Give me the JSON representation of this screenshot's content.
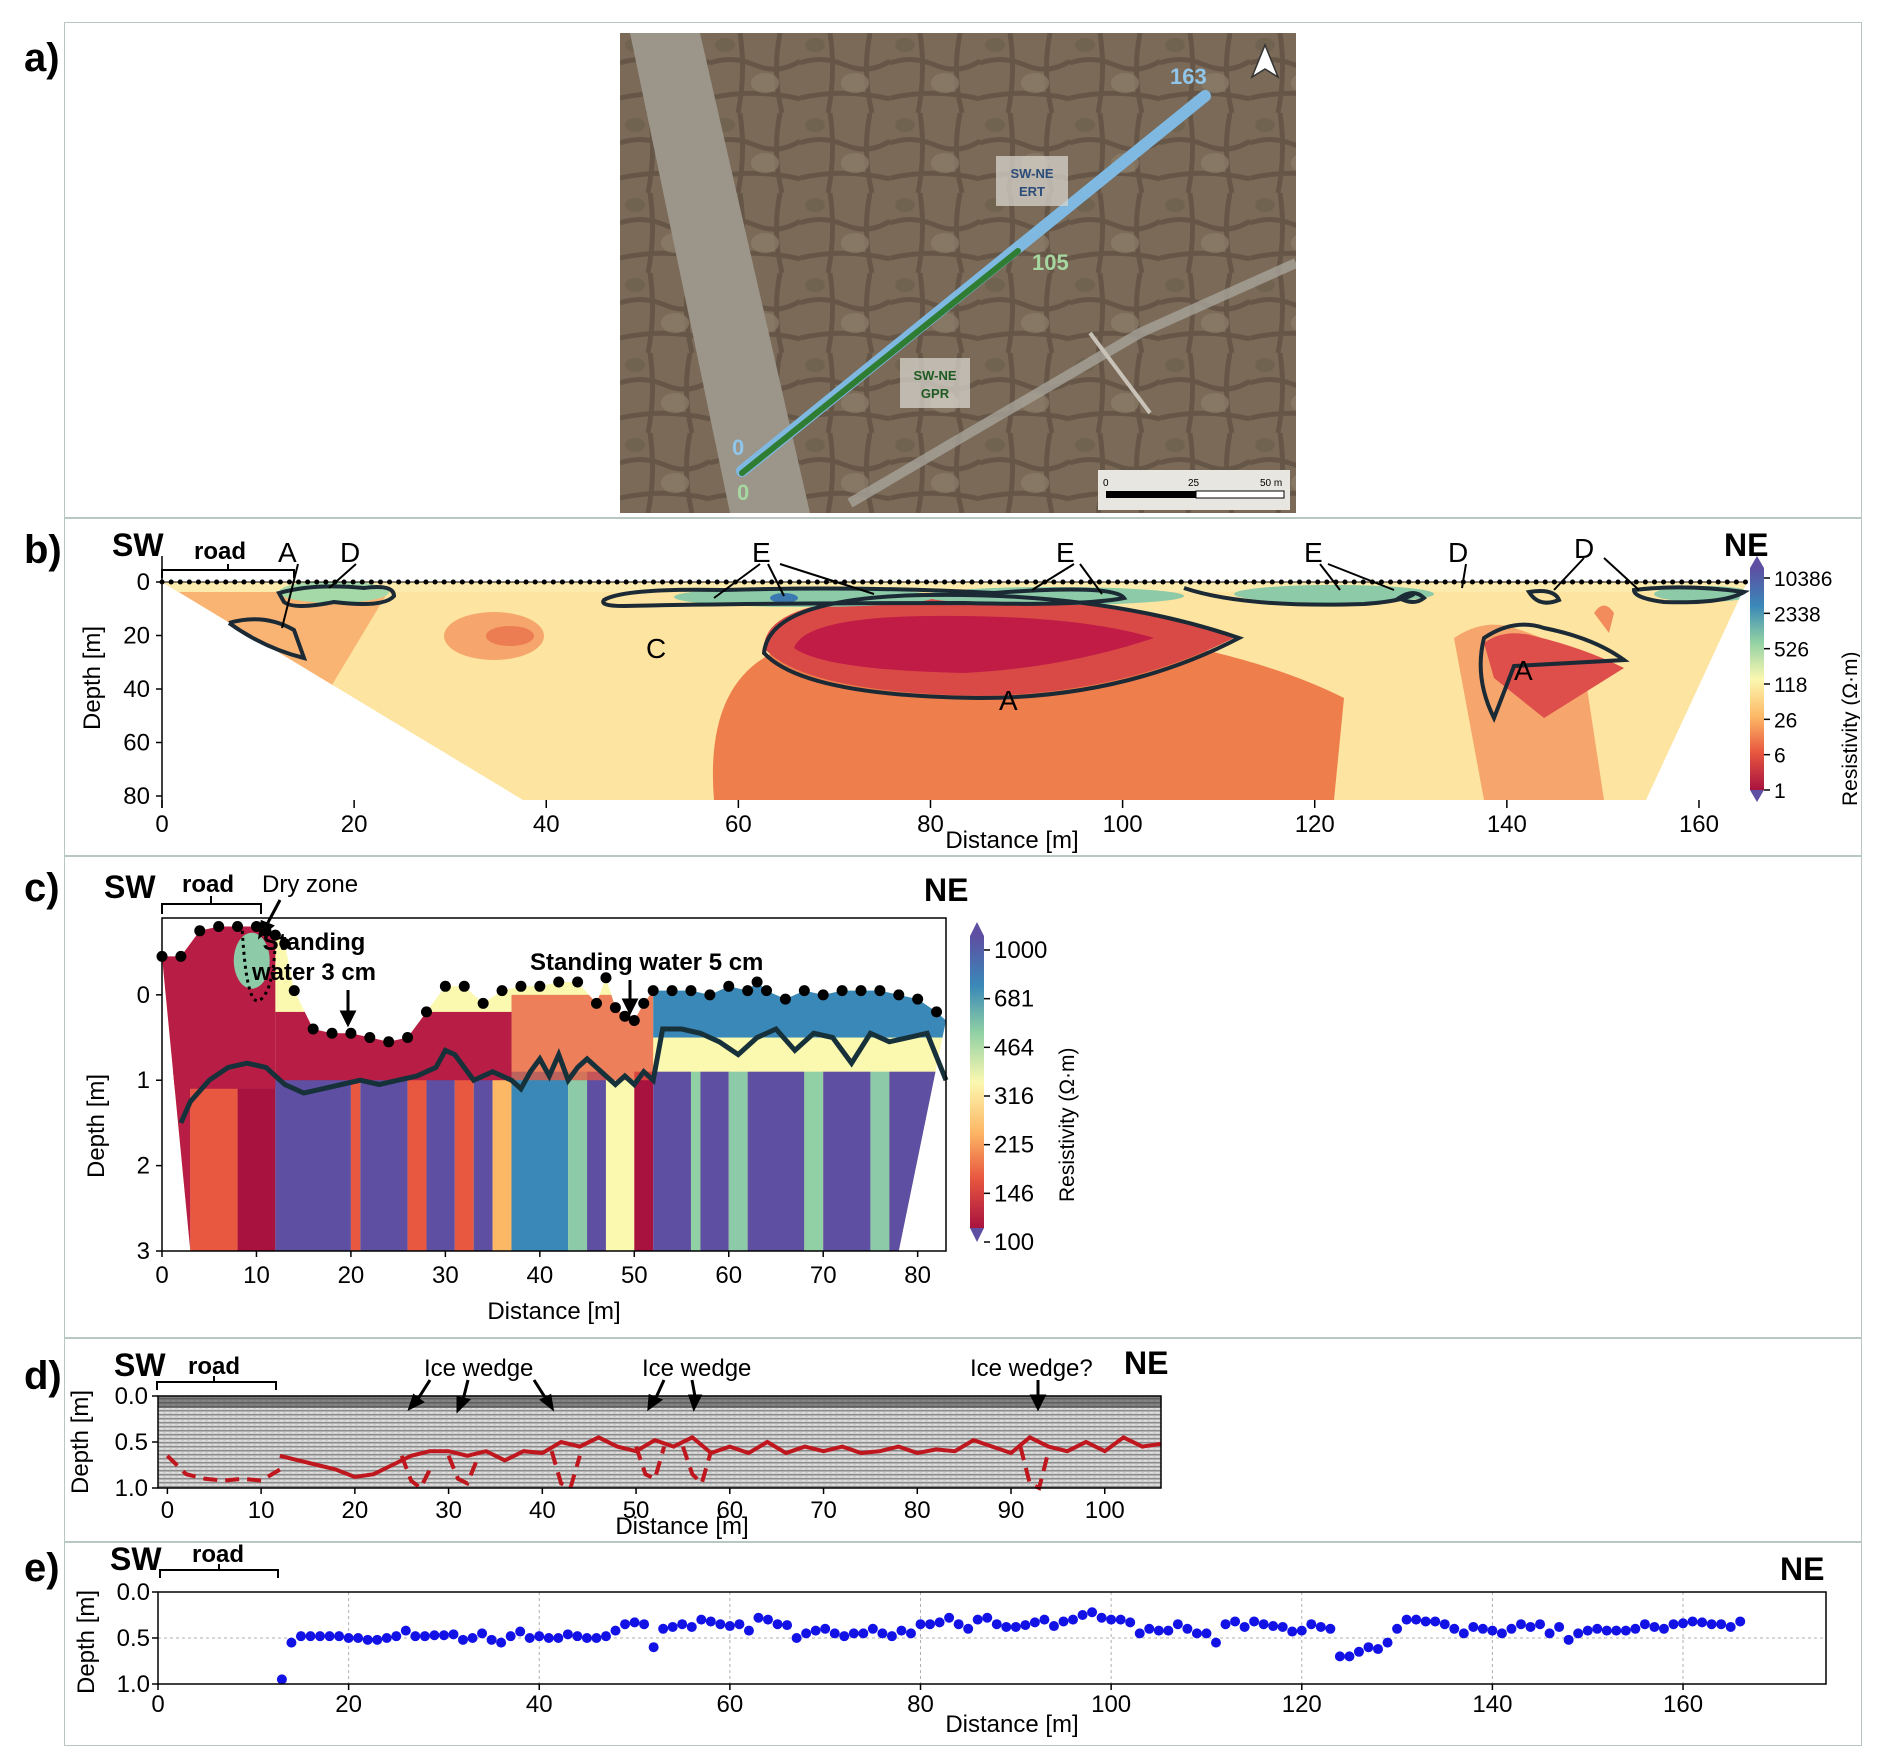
{
  "panel_labels": [
    "a)",
    "b)",
    "c)",
    "d)",
    "e)"
  ],
  "map": {
    "ert_label": "SW-NE\nERT",
    "gpr_label": "SW-NE\nGPR",
    "ert_end": "163",
    "gpr_end": "105",
    "ert_start": "0",
    "gpr_start": "0",
    "scale_ticks": [
      "0",
      "25",
      "50 m"
    ],
    "colors": {
      "ert": "#7fb8e0",
      "gpr": "#2e7d32",
      "ert_text": "#8fc6ea",
      "gpr_text": "#a7d7a0"
    },
    "north_arrow_icon": "north-arrow-icon"
  },
  "chart_data": [
    {
      "id": "b",
      "type": "heatmap",
      "xlabel": "Distance [m]",
      "ylabel": "Depth [m]",
      "xlim": [
        0,
        165
      ],
      "ylim": [
        82,
        -5
      ],
      "xticks": [
        "0",
        "20",
        "40",
        "60",
        "80",
        "100",
        "120",
        "140",
        "160"
      ],
      "yticks": [
        "0",
        "20",
        "40",
        "60",
        "80"
      ],
      "colorbar": {
        "label": "Resistivity (Ω·m)",
        "ticks": [
          "10386",
          "2338",
          "526",
          "118",
          "26",
          "6",
          "1"
        ]
      },
      "annotations": {
        "sw": "SW",
        "ne": "NE",
        "road": "road",
        "zones": [
          "A",
          "D",
          "E",
          "E",
          "E",
          "D",
          "D",
          "C",
          "A",
          "A"
        ]
      }
    },
    {
      "id": "c",
      "type": "heatmap",
      "xlabel": "Distance [m]",
      "ylabel": "Depth [m]",
      "xlim": [
        0,
        83
      ],
      "ylim": [
        3,
        -0.9
      ],
      "xticks": [
        "0",
        "10",
        "20",
        "30",
        "40",
        "50",
        "60",
        "70",
        "80"
      ],
      "yticks": [
        "0",
        "1",
        "2",
        "3"
      ],
      "colorbar": {
        "label": "Resistivity (Ω·m)",
        "ticks": [
          "1000",
          "681",
          "464",
          "316",
          "215",
          "146",
          "100"
        ]
      },
      "annotations": {
        "sw": "SW",
        "ne": "NE",
        "road": "road",
        "dry_zone": "Dry zone",
        "water1": "Standing\nwater 3 cm",
        "water2": "Standing water 5 cm"
      },
      "boundary": {
        "x": [
          2,
          3,
          5,
          7,
          9,
          11,
          13,
          15,
          17,
          19,
          21,
          23,
          25,
          27,
          29,
          30,
          31,
          33,
          35,
          37,
          38,
          39,
          40,
          41,
          42,
          43,
          44,
          45,
          46,
          47,
          48,
          49,
          50,
          51,
          52,
          53,
          55,
          57,
          59,
          61,
          63,
          65,
          67,
          69,
          71,
          73,
          75,
          77,
          79,
          81,
          83
        ],
        "y": [
          1.5,
          1.25,
          1.0,
          0.85,
          0.8,
          0.85,
          1.05,
          1.15,
          1.1,
          1.05,
          1.0,
          1.05,
          1.0,
          0.95,
          0.85,
          0.65,
          0.7,
          1.0,
          0.9,
          1.0,
          1.1,
          0.9,
          0.75,
          0.95,
          0.7,
          1.0,
          0.85,
          0.75,
          0.85,
          0.95,
          1.05,
          0.95,
          1.05,
          0.9,
          1.0,
          0.4,
          0.4,
          0.45,
          0.55,
          0.7,
          0.5,
          0.4,
          0.65,
          0.45,
          0.5,
          0.8,
          0.45,
          0.55,
          0.5,
          0.45,
          1.0
        ]
      },
      "surface": {
        "x": [
          0,
          2,
          4,
          6,
          8,
          10,
          11,
          12,
          13,
          14,
          16,
          18,
          20,
          22,
          24,
          26,
          28,
          30,
          32,
          34,
          36,
          38,
          40,
          42,
          44,
          46,
          47,
          48,
          49,
          50,
          51,
          52,
          54,
          56,
          58,
          60,
          62,
          63,
          64,
          66,
          68,
          70,
          72,
          74,
          76,
          78,
          80,
          82
        ],
        "y": [
          -0.45,
          -0.45,
          -0.75,
          -0.8,
          -0.8,
          -0.8,
          -0.75,
          -0.7,
          -0.6,
          -0.05,
          0.4,
          0.45,
          0.45,
          0.5,
          0.55,
          0.5,
          0.2,
          -0.1,
          -0.1,
          0.1,
          -0.05,
          -0.1,
          -0.1,
          -0.15,
          -0.15,
          0.1,
          -0.2,
          0.15,
          0.25,
          0.3,
          0.1,
          -0.05,
          -0.05,
          -0.05,
          0.0,
          -0.1,
          -0.05,
          -0.15,
          -0.05,
          0.05,
          -0.05,
          0.0,
          -0.05,
          -0.05,
          -0.05,
          0.0,
          0.05,
          0.2
        ]
      }
    },
    {
      "id": "d",
      "type": "line",
      "xlabel": "Distance [m]",
      "ylabel": "Depth [m]",
      "xlim": [
        -1,
        106
      ],
      "ylim": [
        1.0,
        0.0
      ],
      "xticks": [
        "0",
        "10",
        "20",
        "30",
        "40",
        "50",
        "60",
        "70",
        "80",
        "90",
        "100"
      ],
      "yticks": [
        "0.0",
        "0.5",
        "1.0"
      ],
      "annotations": {
        "sw": "SW",
        "ne": "NE",
        "road": "road",
        "ice1": "Ice wedge",
        "ice2": "Ice wedge",
        "ice3": "Ice wedge?"
      },
      "series": [
        {
          "x": [
            12,
            14,
            16,
            18,
            20,
            22,
            24,
            26,
            28,
            30,
            32,
            34,
            36,
            38,
            40,
            42,
            44,
            46,
            48,
            50,
            52,
            54,
            56,
            58,
            60,
            62,
            64,
            66,
            68,
            70,
            72,
            74,
            76,
            78,
            80,
            82,
            84,
            86,
            88,
            90,
            92,
            94,
            96,
            98,
            100,
            102,
            104,
            106
          ],
          "y": [
            0.65,
            0.7,
            0.75,
            0.8,
            0.88,
            0.85,
            0.75,
            0.65,
            0.6,
            0.6,
            0.65,
            0.6,
            0.7,
            0.6,
            0.62,
            0.5,
            0.55,
            0.45,
            0.55,
            0.6,
            0.48,
            0.55,
            0.45,
            0.62,
            0.55,
            0.62,
            0.5,
            0.62,
            0.55,
            0.6,
            0.55,
            0.62,
            0.6,
            0.55,
            0.62,
            0.58,
            0.6,
            0.48,
            0.55,
            0.62,
            0.45,
            0.55,
            0.6,
            0.5,
            0.6,
            0.45,
            0.55,
            0.52
          ]
        },
        {
          "x": [
            0,
            2,
            4,
            6,
            8,
            10,
            12
          ],
          "y": [
            0.65,
            0.85,
            0.9,
            0.92,
            0.9,
            0.92,
            0.8
          ]
        },
        {
          "x": [
            25,
            26,
            27,
            28
          ],
          "y": [
            0.65,
            0.92,
            1.0,
            0.8
          ]
        },
        {
          "x": [
            30,
            31,
            32,
            33
          ],
          "y": [
            0.65,
            0.9,
            0.95,
            0.7
          ]
        },
        {
          "x": [
            41,
            42,
            43,
            44
          ],
          "y": [
            0.6,
            0.95,
            1.0,
            0.65
          ]
        },
        {
          "x": [
            50,
            51,
            52,
            53
          ],
          "y": [
            0.55,
            0.85,
            0.9,
            0.55
          ]
        },
        {
          "x": [
            55,
            56,
            57,
            58
          ],
          "y": [
            0.55,
            0.85,
            0.95,
            0.6
          ]
        },
        {
          "x": [
            91,
            92,
            93,
            94
          ],
          "y": [
            0.55,
            0.95,
            1.0,
            0.6
          ]
        }
      ]
    },
    {
      "id": "e",
      "type": "scatter",
      "xlabel": "Distance [m]",
      "ylabel": "Depth [m]",
      "xlim": [
        0,
        175
      ],
      "ylim": [
        1.0,
        0.0
      ],
      "xticks": [
        "0",
        "20",
        "40",
        "60",
        "80",
        "100",
        "120",
        "140",
        "160"
      ],
      "yticks": [
        "0.0",
        "0.5",
        "1.0"
      ],
      "annotations": {
        "sw": "SW",
        "ne": "NE",
        "road": "road"
      },
      "points": {
        "x": [
          13,
          14,
          15,
          16,
          17,
          18,
          19,
          20,
          21,
          22,
          23,
          24,
          25,
          26,
          27,
          28,
          29,
          30,
          31,
          32,
          33,
          34,
          35,
          36,
          37,
          38,
          39,
          40,
          41,
          42,
          43,
          44,
          45,
          46,
          47,
          48,
          49,
          50,
          51,
          52,
          53,
          54,
          55,
          56,
          57,
          58,
          59,
          60,
          61,
          62,
          63,
          64,
          65,
          66,
          67,
          68,
          69,
          70,
          71,
          72,
          73,
          74,
          75,
          76,
          77,
          78,
          79,
          80,
          81,
          82,
          83,
          84,
          85,
          86,
          87,
          88,
          89,
          90,
          91,
          92,
          93,
          94,
          95,
          96,
          97,
          98,
          99,
          100,
          101,
          102,
          103,
          104,
          105,
          106,
          107,
          108,
          109,
          110,
          111,
          112,
          113,
          114,
          115,
          116,
          117,
          118,
          119,
          120,
          121,
          122,
          123,
          124,
          125,
          126,
          127,
          128,
          129,
          130,
          131,
          132,
          133,
          134,
          135,
          136,
          137,
          138,
          139,
          140,
          141,
          142,
          143,
          144,
          145,
          146,
          147,
          148,
          149,
          150,
          151,
          152,
          153,
          154,
          155,
          156,
          157,
          158,
          159,
          160,
          161,
          162,
          163,
          164,
          165,
          166
        ],
        "y": [
          0.95,
          0.55,
          0.48,
          0.48,
          0.48,
          0.48,
          0.48,
          0.5,
          0.5,
          0.52,
          0.52,
          0.5,
          0.48,
          0.42,
          0.48,
          0.48,
          0.47,
          0.47,
          0.46,
          0.52,
          0.5,
          0.45,
          0.52,
          0.55,
          0.48,
          0.43,
          0.5,
          0.48,
          0.5,
          0.5,
          0.46,
          0.48,
          0.5,
          0.5,
          0.48,
          0.42,
          0.35,
          0.33,
          0.35,
          0.6,
          0.4,
          0.38,
          0.35,
          0.38,
          0.3,
          0.32,
          0.35,
          0.37,
          0.35,
          0.42,
          0.28,
          0.3,
          0.35,
          0.36,
          0.5,
          0.45,
          0.42,
          0.4,
          0.45,
          0.48,
          0.45,
          0.45,
          0.4,
          0.45,
          0.48,
          0.42,
          0.45,
          0.35,
          0.35,
          0.33,
          0.28,
          0.35,
          0.4,
          0.3,
          0.28,
          0.35,
          0.38,
          0.38,
          0.36,
          0.33,
          0.3,
          0.37,
          0.32,
          0.3,
          0.25,
          0.22,
          0.28,
          0.3,
          0.3,
          0.33,
          0.45,
          0.4,
          0.42,
          0.42,
          0.35,
          0.4,
          0.45,
          0.45,
          0.55,
          0.35,
          0.32,
          0.38,
          0.32,
          0.35,
          0.37,
          0.38,
          0.43,
          0.42,
          0.35,
          0.38,
          0.4,
          0.7,
          0.7,
          0.65,
          0.6,
          0.62,
          0.55,
          0.4,
          0.3,
          0.3,
          0.32,
          0.32,
          0.35,
          0.4,
          0.45,
          0.38,
          0.4,
          0.42,
          0.45,
          0.4,
          0.35,
          0.38,
          0.35,
          0.45,
          0.38,
          0.52,
          0.45,
          0.42,
          0.4,
          0.42,
          0.42,
          0.42,
          0.4,
          0.35,
          0.38,
          0.4,
          0.35,
          0.34,
          0.32,
          0.33,
          0.35,
          0.35,
          0.38,
          0.32
        ]
      }
    }
  ]
}
